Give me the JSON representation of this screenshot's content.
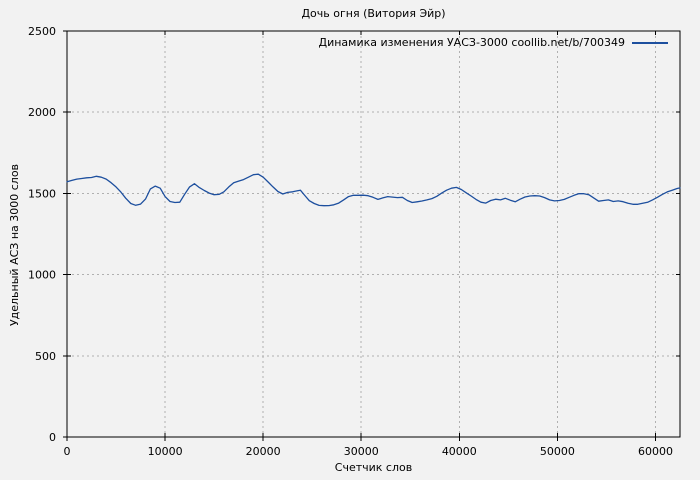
{
  "colors": {
    "background": "#f2f2f2",
    "border": "#000000",
    "grid": "#b0b0b0",
    "text": "#000000",
    "line": "#1d4f9e"
  },
  "chart_data": {
    "type": "line",
    "title": "Дочь огня (Витория Эйр)",
    "xlabel": "Счетчик слов",
    "ylabel": "Удельный АСЗ на 3000 слов",
    "legend_position": "top-right-inside",
    "grid": true,
    "xlim": [
      0,
      62500
    ],
    "ylim": [
      0,
      2500
    ],
    "x_ticks": [
      0,
      10000,
      20000,
      30000,
      40000,
      50000,
      60000
    ],
    "y_ticks": [
      0,
      500,
      1000,
      1500,
      2000,
      2500
    ],
    "series": [
      {
        "name": "Динамика изменения УАСЗ-3000 coollib.net/b/700349",
        "color": "#1d4f9e",
        "points": [
          [
            0,
            1572
          ],
          [
            500,
            1580
          ],
          [
            1000,
            1588
          ],
          [
            1500,
            1592
          ],
          [
            2000,
            1596
          ],
          [
            2500,
            1598
          ],
          [
            3000,
            1605
          ],
          [
            3500,
            1600
          ],
          [
            4000,
            1588
          ],
          [
            4500,
            1566
          ],
          [
            5000,
            1540
          ],
          [
            5500,
            1508
          ],
          [
            6000,
            1470
          ],
          [
            6500,
            1438
          ],
          [
            7000,
            1427
          ],
          [
            7500,
            1434
          ],
          [
            8000,
            1465
          ],
          [
            8500,
            1528
          ],
          [
            9000,
            1545
          ],
          [
            9500,
            1532
          ],
          [
            10000,
            1480
          ],
          [
            10500,
            1450
          ],
          [
            11000,
            1444
          ],
          [
            11500,
            1446
          ],
          [
            12000,
            1495
          ],
          [
            12500,
            1540
          ],
          [
            13000,
            1560
          ],
          [
            13500,
            1536
          ],
          [
            14000,
            1518
          ],
          [
            14500,
            1502
          ],
          [
            15000,
            1492
          ],
          [
            15500,
            1494
          ],
          [
            16000,
            1510
          ],
          [
            16500,
            1540
          ],
          [
            17000,
            1566
          ],
          [
            17500,
            1576
          ],
          [
            18000,
            1585
          ],
          [
            18500,
            1600
          ],
          [
            19000,
            1615
          ],
          [
            19500,
            1618
          ],
          [
            20000,
            1600
          ],
          [
            20500,
            1570
          ],
          [
            21000,
            1540
          ],
          [
            21500,
            1512
          ],
          [
            22000,
            1496
          ],
          [
            22500,
            1506
          ],
          [
            23000,
            1510
          ],
          [
            23500,
            1516
          ],
          [
            23800,
            1520
          ],
          [
            24200,
            1490
          ],
          [
            24700,
            1455
          ],
          [
            25200,
            1438
          ],
          [
            25700,
            1426
          ],
          [
            26200,
            1424
          ],
          [
            26700,
            1425
          ],
          [
            27200,
            1430
          ],
          [
            27700,
            1440
          ],
          [
            28200,
            1460
          ],
          [
            28700,
            1480
          ],
          [
            29200,
            1488
          ],
          [
            29700,
            1488
          ],
          [
            30200,
            1489
          ],
          [
            30700,
            1486
          ],
          [
            31200,
            1476
          ],
          [
            31700,
            1463
          ],
          [
            32200,
            1472
          ],
          [
            32700,
            1480
          ],
          [
            33200,
            1477
          ],
          [
            33700,
            1474
          ],
          [
            34200,
            1476
          ],
          [
            34700,
            1456
          ],
          [
            35200,
            1444
          ],
          [
            35700,
            1448
          ],
          [
            36200,
            1453
          ],
          [
            36700,
            1460
          ],
          [
            37200,
            1468
          ],
          [
            37700,
            1482
          ],
          [
            38200,
            1502
          ],
          [
            38700,
            1520
          ],
          [
            39200,
            1532
          ],
          [
            39700,
            1537
          ],
          [
            40200,
            1524
          ],
          [
            40700,
            1504
          ],
          [
            41200,
            1484
          ],
          [
            41700,
            1463
          ],
          [
            42200,
            1446
          ],
          [
            42700,
            1440
          ],
          [
            43200,
            1456
          ],
          [
            43700,
            1464
          ],
          [
            44200,
            1460
          ],
          [
            44700,
            1470
          ],
          [
            45200,
            1458
          ],
          [
            45700,
            1448
          ],
          [
            46200,
            1464
          ],
          [
            46700,
            1478
          ],
          [
            47200,
            1484
          ],
          [
            47700,
            1486
          ],
          [
            48200,
            1484
          ],
          [
            48700,
            1474
          ],
          [
            49200,
            1460
          ],
          [
            49700,
            1454
          ],
          [
            50200,
            1456
          ],
          [
            50700,
            1463
          ],
          [
            51200,
            1476
          ],
          [
            51700,
            1488
          ],
          [
            52200,
            1499
          ],
          [
            52700,
            1498
          ],
          [
            53200,
            1492
          ],
          [
            53700,
            1472
          ],
          [
            54200,
            1452
          ],
          [
            54700,
            1456
          ],
          [
            55200,
            1460
          ],
          [
            55700,
            1450
          ],
          [
            56200,
            1454
          ],
          [
            56700,
            1449
          ],
          [
            57200,
            1439
          ],
          [
            57700,
            1433
          ],
          [
            58200,
            1433
          ],
          [
            58700,
            1439
          ],
          [
            59200,
            1445
          ],
          [
            59700,
            1460
          ],
          [
            60200,
            1476
          ],
          [
            60700,
            1494
          ],
          [
            61200,
            1509
          ],
          [
            61700,
            1520
          ],
          [
            62200,
            1530
          ],
          [
            62500,
            1534
          ]
        ]
      }
    ]
  }
}
